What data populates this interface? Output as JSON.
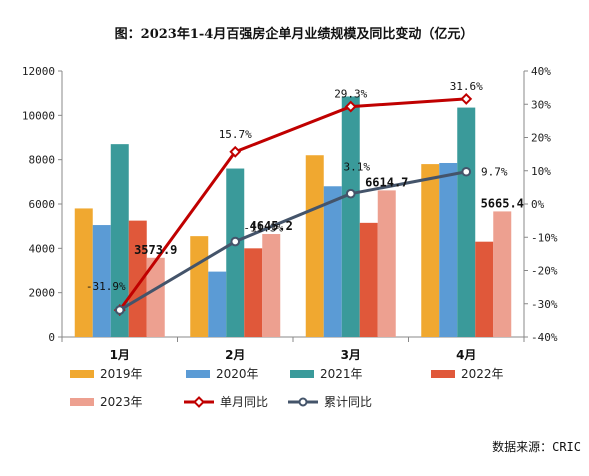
{
  "chart_data": {
    "type": "bar",
    "title": "图：2023年1-4月百强房企单月业绩规模及同比变动（亿元）",
    "categories": [
      "1月",
      "2月",
      "3月",
      "4月"
    ],
    "ylim": [
      0,
      12000
    ],
    "y_ticks": [
      "0",
      "2000",
      "4000",
      "6000",
      "8000",
      "10000",
      "12000"
    ],
    "y2lim": [
      -40,
      40
    ],
    "y2_ticks": [
      "-40%",
      "-30%",
      "-20%",
      "-10%",
      "0%",
      "10%",
      "20%",
      "30%",
      "40%"
    ],
    "grid": false,
    "legend_position": "bottom",
    "series": [
      {
        "name": "2019年",
        "type": "bar",
        "color": "#f0a830",
        "values": [
          5800,
          4550,
          8200,
          7800
        ]
      },
      {
        "name": "2020年",
        "type": "bar",
        "color": "#5b9bd5",
        "values": [
          5050,
          2950,
          6800,
          7850
        ]
      },
      {
        "name": "2021年",
        "type": "bar",
        "color": "#3a9a9a",
        "values": [
          8700,
          7600,
          10850,
          10350
        ]
      },
      {
        "name": "2022年",
        "type": "bar",
        "color": "#e0583a",
        "values": [
          5250,
          4000,
          5150,
          4300
        ]
      },
      {
        "name": "2023年",
        "type": "bar",
        "color": "#eda090",
        "values": [
          3573.9,
          4645.2,
          6614.7,
          5665.4
        ],
        "labels": [
          "3573.9",
          "4645.2",
          "6614.7",
          "5665.4"
        ]
      },
      {
        "name": "单月同比",
        "type": "line",
        "axis": "right",
        "color": "#c00000",
        "marker": "diamond",
        "values": [
          -31.9,
          15.7,
          29.3,
          31.6
        ],
        "labels": [
          "-31.9%",
          "15.7%",
          "29.3%",
          "31.6%"
        ]
      },
      {
        "name": "累计同比",
        "type": "line",
        "axis": "right",
        "color": "#44546a",
        "marker": "circle",
        "values": [
          -31.9,
          -11.3,
          3.1,
          9.7
        ],
        "labels": [
          "-31.9%",
          "-11.3%",
          "3.1%",
          "9.7%"
        ]
      }
    ]
  },
  "source": "数据来源：CRIC"
}
